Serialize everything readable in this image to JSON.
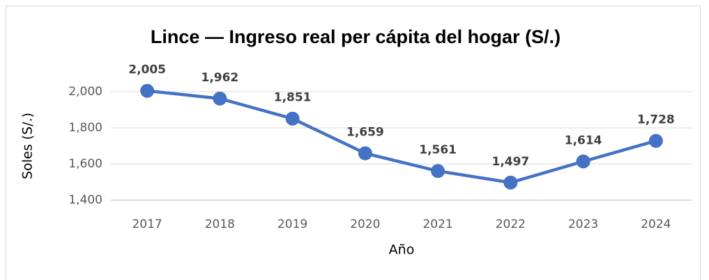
{
  "chart_data": {
    "type": "line",
    "title": "Lince — Ingreso real per cápita del hogar (S/.)",
    "x_label": "Año",
    "y_label": "Soles (S/.)",
    "categories": [
      "2017",
      "2018",
      "2019",
      "2020",
      "2021",
      "2022",
      "2023",
      "2024"
    ],
    "series": [
      {
        "name": "Ingreso real per cápita",
        "color": "#4472c4",
        "values": [
          2005,
          1962,
          1851,
          1659,
          1561,
          1497,
          1614,
          1728
        ],
        "value_labels": [
          "2,005",
          "1,962",
          "1,851",
          "1,659",
          "1,561",
          "1,497",
          "1,614",
          "1,728"
        ]
      }
    ],
    "ylim": [
      1400,
      2100
    ],
    "yticks": [
      {
        "value": 1400,
        "label": "1,400"
      },
      {
        "value": 1600,
        "label": "1,600"
      },
      {
        "value": 1800,
        "label": "1,800"
      },
      {
        "value": 2000,
        "label": "2,000"
      }
    ],
    "grid": true
  }
}
